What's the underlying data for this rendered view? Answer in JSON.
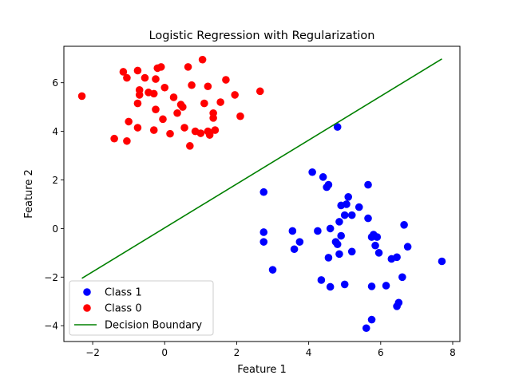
{
  "chart_data": {
    "type": "scatter",
    "title": "Logistic Regression with Regularization",
    "xlabel": "Feature 1",
    "ylabel": "Feature 2",
    "xlim": [
      -2.8,
      8.2
    ],
    "ylim": [
      -4.65,
      7.5
    ],
    "xticks": [
      -2,
      0,
      2,
      4,
      6,
      8
    ],
    "xtick_labels": [
      "−2",
      "0",
      "2",
      "4",
      "6",
      "8"
    ],
    "yticks": [
      -4,
      -2,
      0,
      2,
      4,
      6
    ],
    "ytick_labels": [
      "−4",
      "−2",
      "0",
      "2",
      "4",
      "6"
    ],
    "grid": false,
    "legend_position": "lower-left",
    "series": [
      {
        "name": "Class 1",
        "kind": "scatter",
        "color": "#0000ff",
        "points": [
          [
            4.8,
            4.18
          ],
          [
            2.75,
            1.5
          ],
          [
            4.1,
            2.32
          ],
          [
            4.4,
            2.12
          ],
          [
            4.55,
            1.8
          ],
          [
            4.5,
            1.7
          ],
          [
            5.1,
            1.3
          ],
          [
            5.05,
            1.0
          ],
          [
            5.65,
            1.8
          ],
          [
            4.9,
            0.95
          ],
          [
            5.4,
            0.88
          ],
          [
            5.0,
            0.55
          ],
          [
            5.2,
            0.55
          ],
          [
            5.65,
            0.42
          ],
          [
            4.85,
            0.28
          ],
          [
            2.75,
            -0.15
          ],
          [
            3.55,
            -0.1
          ],
          [
            4.25,
            -0.1
          ],
          [
            4.6,
            0.0
          ],
          [
            4.9,
            -0.3
          ],
          [
            5.8,
            -0.25
          ],
          [
            5.75,
            -0.35
          ],
          [
            5.9,
            -0.35
          ],
          [
            6.65,
            0.15
          ],
          [
            2.75,
            -0.55
          ],
          [
            3.75,
            -0.55
          ],
          [
            4.75,
            -0.55
          ],
          [
            4.8,
            -0.65
          ],
          [
            5.85,
            -0.7
          ],
          [
            6.75,
            -0.75
          ],
          [
            3.6,
            -0.85
          ],
          [
            5.2,
            -0.95
          ],
          [
            5.95,
            -1.0
          ],
          [
            4.85,
            -1.05
          ],
          [
            4.55,
            -1.2
          ],
          [
            6.45,
            -1.18
          ],
          [
            6.3,
            -1.25
          ],
          [
            7.7,
            -1.35
          ],
          [
            3.0,
            -1.7
          ],
          [
            6.6,
            -2.0
          ],
          [
            4.35,
            -2.12
          ],
          [
            5.0,
            -2.3
          ],
          [
            6.15,
            -2.35
          ],
          [
            4.6,
            -2.4
          ],
          [
            5.75,
            -2.38
          ],
          [
            6.5,
            -3.05
          ],
          [
            6.45,
            -3.2
          ],
          [
            5.75,
            -3.75
          ],
          [
            5.6,
            -4.1
          ]
        ]
      },
      {
        "name": "Class 0",
        "kind": "scatter",
        "color": "#ff0000",
        "points": [
          [
            1.05,
            6.95
          ],
          [
            0.65,
            6.65
          ],
          [
            -0.1,
            6.65
          ],
          [
            -0.2,
            6.6
          ],
          [
            -0.75,
            6.5
          ],
          [
            -1.15,
            6.45
          ],
          [
            -1.05,
            6.2
          ],
          [
            -0.55,
            6.2
          ],
          [
            -0.25,
            6.15
          ],
          [
            1.7,
            6.12
          ],
          [
            0.75,
            5.9
          ],
          [
            1.2,
            5.85
          ],
          [
            0.0,
            5.8
          ],
          [
            -0.7,
            5.7
          ],
          [
            -0.45,
            5.6
          ],
          [
            -0.3,
            5.55
          ],
          [
            -0.7,
            5.5
          ],
          [
            2.65,
            5.65
          ],
          [
            1.95,
            5.5
          ],
          [
            -2.3,
            5.45
          ],
          [
            0.25,
            5.4
          ],
          [
            -0.75,
            5.15
          ],
          [
            1.55,
            5.2
          ],
          [
            1.1,
            5.15
          ],
          [
            0.45,
            5.1
          ],
          [
            0.5,
            5.0
          ],
          [
            -0.25,
            4.9
          ],
          [
            0.35,
            4.75
          ],
          [
            1.35,
            4.75
          ],
          [
            2.1,
            4.62
          ],
          [
            1.35,
            4.55
          ],
          [
            -0.05,
            4.5
          ],
          [
            -1.0,
            4.4
          ],
          [
            -0.75,
            4.15
          ],
          [
            0.55,
            4.15
          ],
          [
            -0.3,
            4.05
          ],
          [
            1.4,
            4.05
          ],
          [
            1.2,
            4.0
          ],
          [
            1.25,
            3.95
          ],
          [
            0.85,
            4.0
          ],
          [
            1.0,
            3.92
          ],
          [
            0.15,
            3.9
          ],
          [
            1.25,
            3.85
          ],
          [
            -1.4,
            3.7
          ],
          [
            -1.05,
            3.6
          ],
          [
            0.7,
            3.4
          ]
        ]
      },
      {
        "name": "Decision Boundary",
        "kind": "line",
        "color": "#008000",
        "points": [
          [
            -2.3,
            -2.05
          ],
          [
            7.7,
            6.98
          ]
        ]
      }
    ]
  }
}
